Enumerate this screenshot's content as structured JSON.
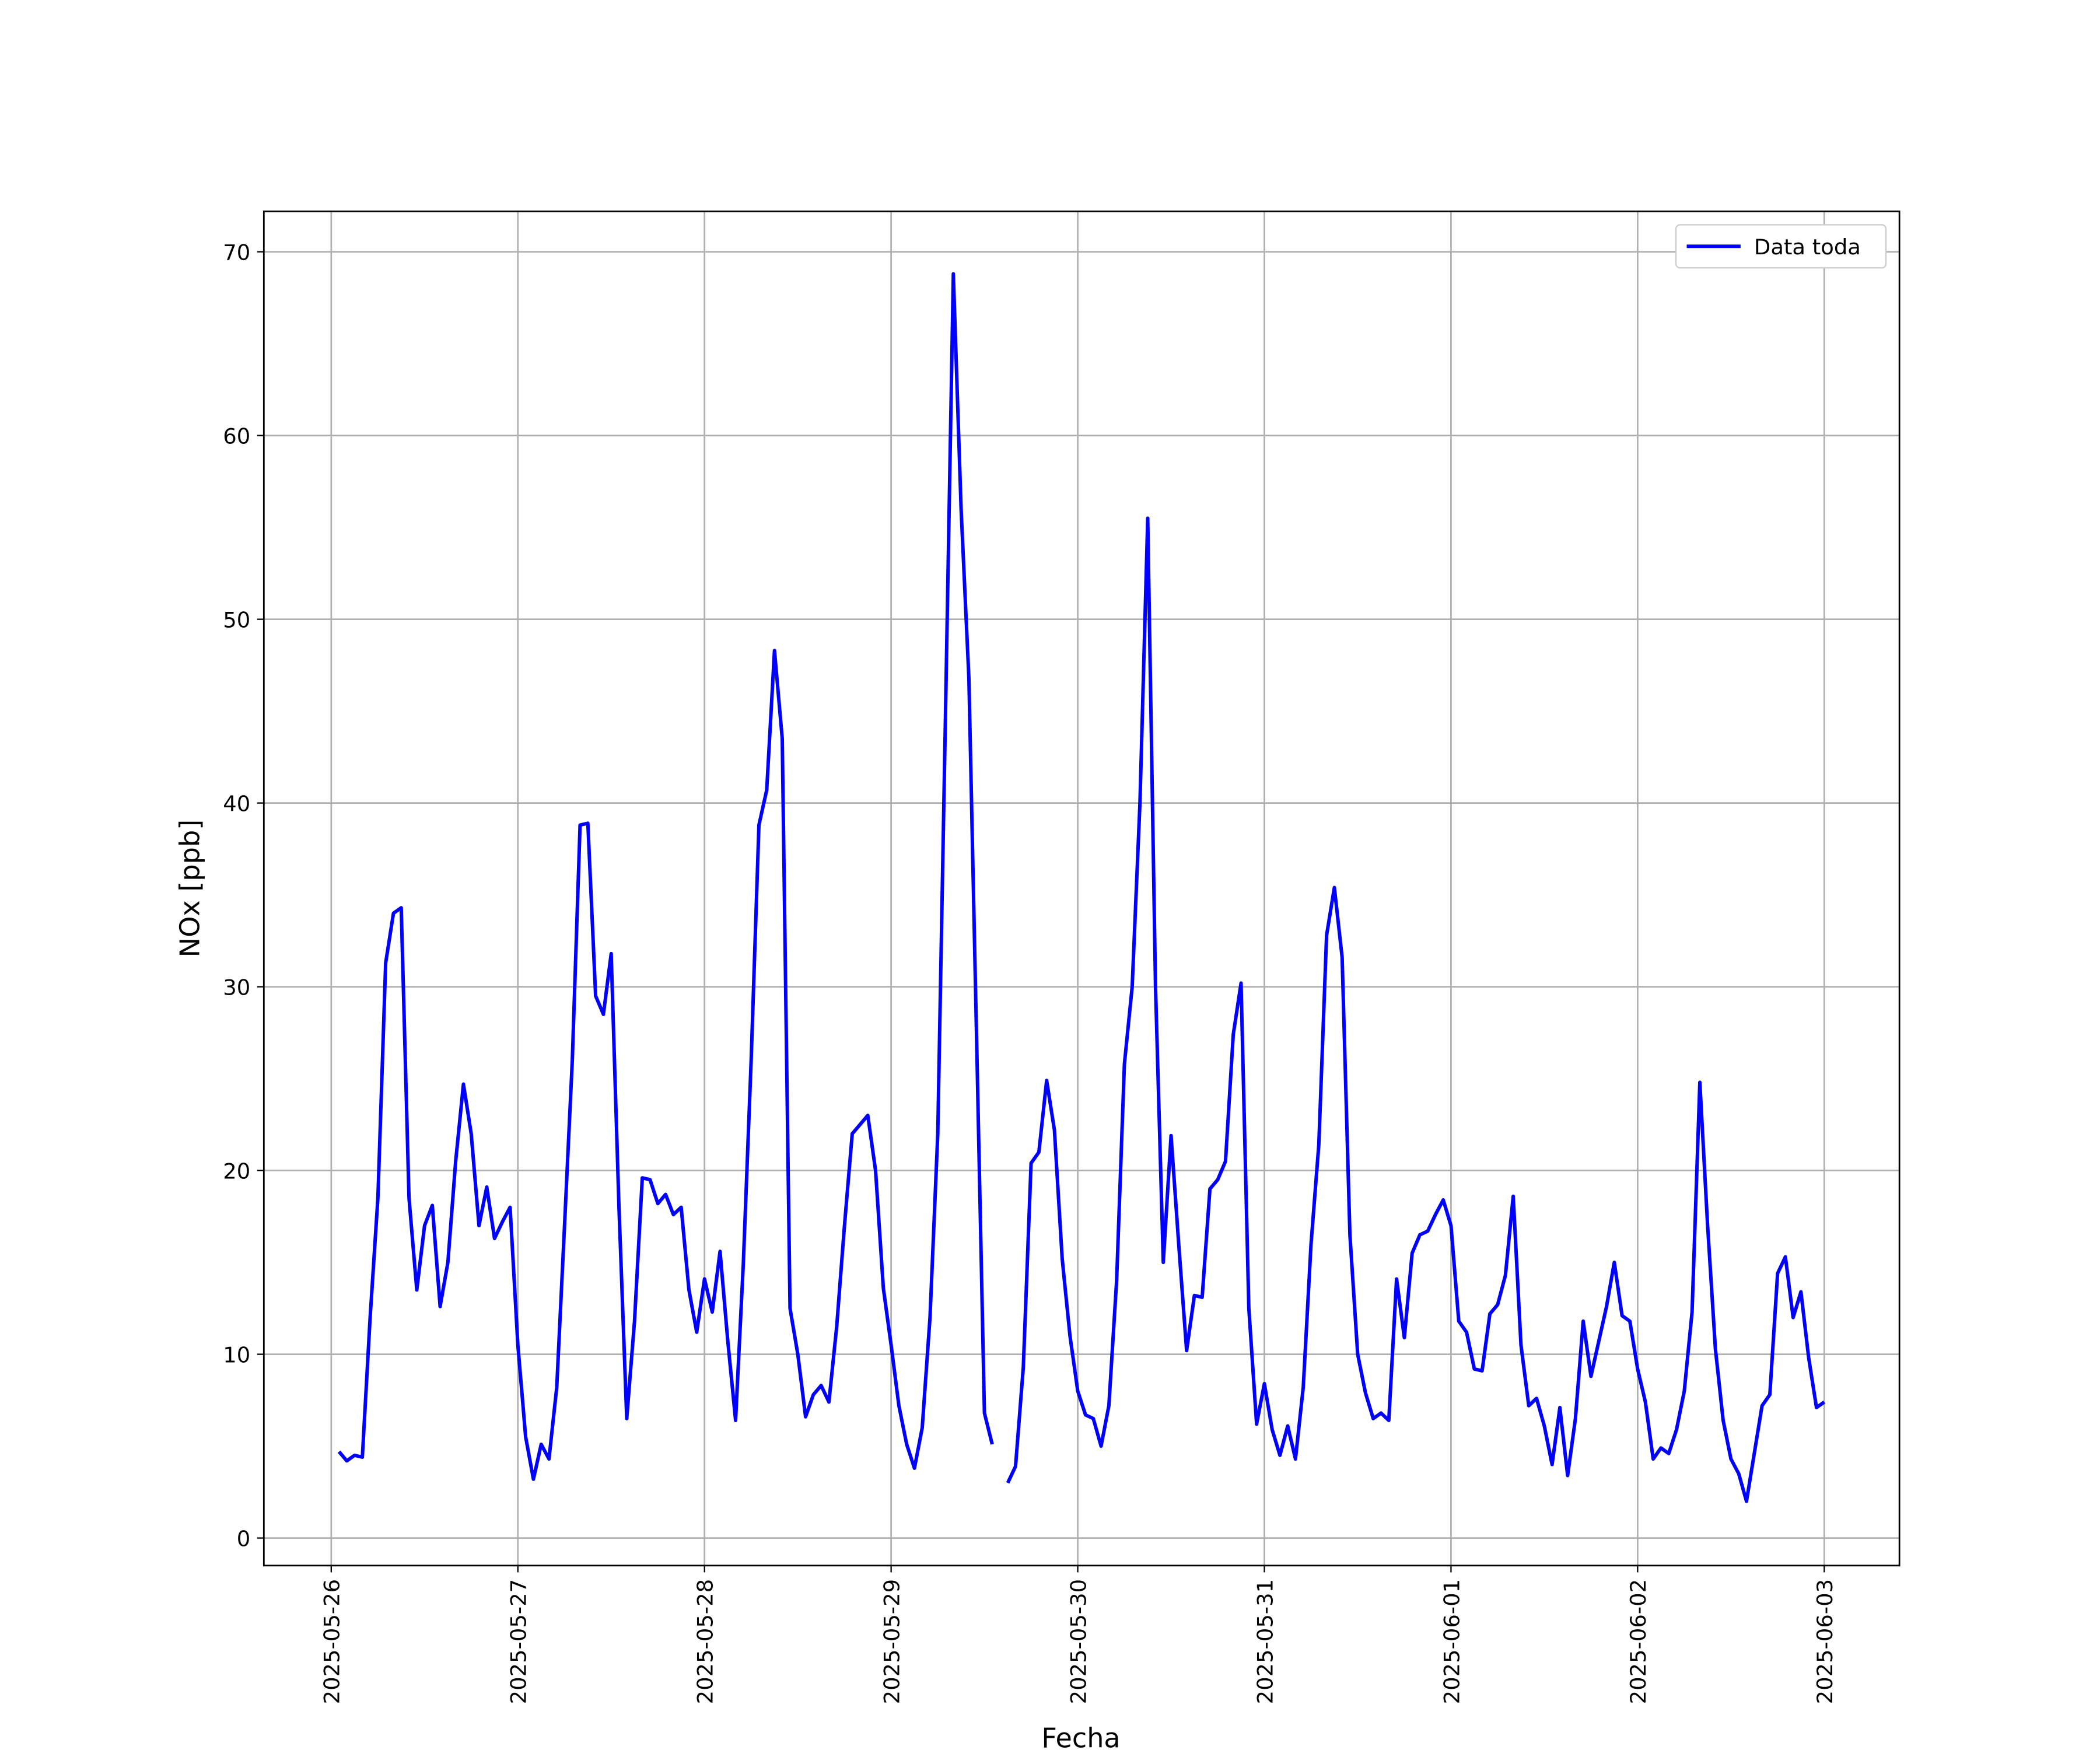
{
  "chart_data": {
    "type": "line",
    "xlabel": "Fecha",
    "ylabel": "NOx [ppb]",
    "x": [
      "2025-05-26 01:00",
      "2025-05-26 02:00",
      "2025-05-26 03:00",
      "2025-05-26 04:00",
      "2025-05-26 05:00",
      "2025-05-26 06:00",
      "2025-05-26 07:00",
      "2025-05-26 08:00",
      "2025-05-26 09:00",
      "2025-05-26 10:00",
      "2025-05-26 11:00",
      "2025-05-26 12:00",
      "2025-05-26 13:00",
      "2025-05-26 14:00",
      "2025-05-26 15:00",
      "2025-05-26 16:00",
      "2025-05-26 17:00",
      "2025-05-26 18:00",
      "2025-05-26 19:00",
      "2025-05-26 20:00",
      "2025-05-26 21:00",
      "2025-05-26 22:00",
      "2025-05-26 23:00",
      "2025-05-27 00:00",
      "2025-05-27 01:00",
      "2025-05-27 02:00",
      "2025-05-27 03:00",
      "2025-05-27 04:00",
      "2025-05-27 05:00",
      "2025-05-27 06:00",
      "2025-05-27 07:00",
      "2025-05-27 08:00",
      "2025-05-27 09:00",
      "2025-05-27 10:00",
      "2025-05-27 11:00",
      "2025-05-27 12:00",
      "2025-05-27 13:00",
      "2025-05-27 14:00",
      "2025-05-27 15:00",
      "2025-05-27 16:00",
      "2025-05-27 17:00",
      "2025-05-27 18:00",
      "2025-05-27 19:00",
      "2025-05-27 20:00",
      "2025-05-27 21:00",
      "2025-05-27 22:00",
      "2025-05-27 23:00",
      "2025-05-28 00:00",
      "2025-05-28 01:00",
      "2025-05-28 02:00",
      "2025-05-28 03:00",
      "2025-05-28 04:00",
      "2025-05-28 05:00",
      "2025-05-28 06:00",
      "2025-05-28 07:00",
      "2025-05-28 08:00",
      "2025-05-28 09:00",
      "2025-05-28 10:00",
      "2025-05-28 11:00",
      "2025-05-28 12:00",
      "2025-05-28 13:00",
      "2025-05-28 14:00",
      "2025-05-28 15:00",
      "2025-05-28 16:00",
      "2025-05-28 17:00",
      "2025-05-28 18:00",
      "2025-05-28 19:00",
      "2025-05-28 20:00",
      "2025-05-28 21:00",
      "2025-05-28 22:00",
      "2025-05-28 23:00",
      "2025-05-29 00:00",
      "2025-05-29 01:00",
      "2025-05-29 02:00",
      "2025-05-29 03:00",
      "2025-05-29 04:00",
      "2025-05-29 05:00",
      "2025-05-29 06:00",
      "2025-05-29 07:00",
      "2025-05-29 08:00",
      "2025-05-29 09:00",
      "2025-05-29 10:00",
      "2025-05-29 11:00",
      "2025-05-29 12:00",
      "2025-05-29 13:00",
      "2025-05-29 14:00",
      "2025-05-29 15:00",
      "2025-05-29 16:00",
      "2025-05-29 17:00",
      "2025-05-29 18:00",
      "2025-05-29 19:00",
      "2025-05-29 20:00",
      "2025-05-29 21:00",
      "2025-05-29 22:00",
      "2025-05-29 23:00",
      "2025-05-30 00:00",
      "2025-05-30 01:00",
      "2025-05-30 02:00",
      "2025-05-30 03:00",
      "2025-05-30 04:00",
      "2025-05-30 05:00",
      "2025-05-30 06:00",
      "2025-05-30 07:00",
      "2025-05-30 08:00",
      "2025-05-30 09:00",
      "2025-05-30 10:00",
      "2025-05-30 11:00",
      "2025-05-30 12:00",
      "2025-05-30 13:00",
      "2025-05-30 14:00",
      "2025-05-30 15:00",
      "2025-05-30 16:00",
      "2025-05-30 17:00",
      "2025-05-30 18:00",
      "2025-05-30 19:00",
      "2025-05-30 20:00",
      "2025-05-30 21:00",
      "2025-05-30 22:00",
      "2025-05-30 23:00",
      "2025-05-31 00:00",
      "2025-05-31 01:00",
      "2025-05-31 02:00",
      "2025-05-31 03:00",
      "2025-05-31 04:00",
      "2025-05-31 05:00",
      "2025-05-31 06:00",
      "2025-05-31 07:00",
      "2025-05-31 08:00",
      "2025-05-31 09:00",
      "2025-05-31 10:00",
      "2025-05-31 11:00",
      "2025-05-31 12:00",
      "2025-05-31 13:00",
      "2025-05-31 14:00",
      "2025-05-31 15:00",
      "2025-05-31 16:00",
      "2025-05-31 17:00",
      "2025-05-31 18:00",
      "2025-05-31 19:00",
      "2025-05-31 20:00",
      "2025-05-31 21:00",
      "2025-05-31 22:00",
      "2025-05-31 23:00",
      "2025-06-01 00:00",
      "2025-06-01 01:00",
      "2025-06-01 02:00",
      "2025-06-01 03:00",
      "2025-06-01 04:00",
      "2025-06-01 05:00",
      "2025-06-01 06:00",
      "2025-06-01 07:00",
      "2025-06-01 08:00",
      "2025-06-01 09:00",
      "2025-06-01 10:00",
      "2025-06-01 11:00",
      "2025-06-01 12:00",
      "2025-06-01 13:00",
      "2025-06-01 14:00",
      "2025-06-01 15:00",
      "2025-06-01 16:00",
      "2025-06-01 17:00",
      "2025-06-01 18:00",
      "2025-06-01 19:00",
      "2025-06-01 20:00",
      "2025-06-01 21:00",
      "2025-06-01 22:00",
      "2025-06-01 23:00",
      "2025-06-02 00:00",
      "2025-06-02 01:00",
      "2025-06-02 02:00",
      "2025-06-02 03:00",
      "2025-06-02 04:00",
      "2025-06-02 05:00",
      "2025-06-02 06:00",
      "2025-06-02 07:00",
      "2025-06-02 08:00",
      "2025-06-02 09:00",
      "2025-06-02 10:00",
      "2025-06-02 11:00",
      "2025-06-02 12:00",
      "2025-06-02 13:00",
      "2025-06-02 14:00",
      "2025-06-02 15:00",
      "2025-06-02 16:00",
      "2025-06-02 17:00",
      "2025-06-02 18:00",
      "2025-06-02 19:00",
      "2025-06-02 20:00",
      "2025-06-02 21:00",
      "2025-06-02 22:00",
      "2025-06-02 23:00",
      "2025-06-03 00:00"
    ],
    "series": [
      {
        "name": "Data toda",
        "color": "#0000ff",
        "values": [
          4.7,
          4.2,
          4.5,
          4.4,
          12,
          18.5,
          31.3,
          34,
          34.3,
          18.5,
          13.5,
          17,
          18.1,
          12.6,
          15,
          20.5,
          24.7,
          22,
          17,
          19.1,
          16.3,
          17.2,
          18,
          10.5,
          5.5,
          3.2,
          5.1,
          4.3,
          8.2,
          17,
          26,
          38.8,
          38.9,
          29.5,
          28.5,
          31.8,
          18,
          6.5,
          11.8,
          19.6,
          19.5,
          18.2,
          18.7,
          17.6,
          18,
          13.5,
          11.2,
          14.1,
          12.3,
          15.6,
          10.7,
          6.4,
          15,
          26,
          38.8,
          40.7,
          48.3,
          43.5,
          12.5,
          10,
          6.6,
          7.8,
          8.3,
          7.4,
          11.5,
          17,
          22,
          22.5,
          23,
          20,
          13.6,
          10.5,
          7.2,
          5.1,
          3.8,
          6,
          12,
          22,
          45,
          68.8,
          56,
          46.8,
          27,
          6.8,
          5.1,
          null,
          3,
          3.9,
          9.3,
          20.4,
          21,
          24.9,
          22.2,
          15.2,
          11,
          8,
          6.7,
          6.5,
          5,
          7.2,
          14,
          25.8,
          30,
          40,
          55.5,
          30,
          15,
          21.9,
          15.9,
          10.2,
          13.2,
          13.1,
          19,
          19.5,
          20.5,
          27.4,
          30.2,
          12.5,
          6.2,
          8.4,
          5.9,
          4.5,
          6.1,
          4.3,
          8.2,
          16,
          21.4,
          32.8,
          35.4,
          31.6,
          16.5,
          10,
          7.9,
          6.5,
          6.8,
          6.4,
          14.1,
          10.9,
          15.5,
          16.5,
          16.7,
          17.6,
          18.4,
          17,
          11.8,
          11.2,
          9.2,
          9.1,
          12.2,
          12.7,
          14.3,
          18.6,
          10.5,
          7.2,
          7.6,
          6.1,
          4,
          7.1,
          3.4,
          6.5,
          11.8,
          8.8,
          10.7,
          12.6,
          15,
          12.1,
          11.8,
          9.2,
          7.4,
          4.3,
          4.9,
          4.6,
          5.9,
          8,
          12.3,
          24.8,
          17,
          10.3,
          6.4,
          4.3,
          3.5,
          2,
          4.6,
          7.2,
          7.8,
          14.4,
          15.3,
          12,
          13.4,
          9.8,
          7.1,
          7.4
        ]
      }
    ],
    "xlim": [
      "2025-05-25 15:20",
      "2025-06-03 09:40"
    ],
    "xticks": [
      "2025-05-26",
      "2025-05-27",
      "2025-05-28",
      "2025-05-29",
      "2025-05-30",
      "2025-05-31",
      "2025-06-01",
      "2025-06-02",
      "2025-06-03"
    ],
    "ylim": [
      -1.5,
      72.2
    ],
    "yticks": [
      0,
      10,
      20,
      30,
      40,
      50,
      60,
      70
    ],
    "grid": true,
    "legend": "upper right"
  }
}
